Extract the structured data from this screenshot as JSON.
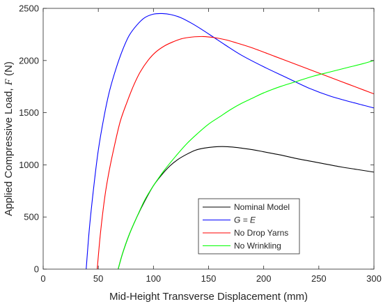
{
  "chart_data": {
    "type": "line",
    "title": "",
    "xlabel": "Mid-Height Transverse Displacement (mm)",
    "ylabel": "Applied Compressive Load, ",
    "ylabel_symbol": "F",
    "ylabel_unit": " (N)",
    "xlim": [
      0,
      300
    ],
    "ylim": [
      0,
      2500
    ],
    "xticks": [
      0,
      50,
      100,
      150,
      200,
      250,
      300
    ],
    "yticks": [
      0,
      500,
      1000,
      1500,
      2000,
      2500
    ],
    "grid": false,
    "legend_position": "bottom-center",
    "series": [
      {
        "name": "Nominal Model",
        "color": "#000000",
        "x": [
          68,
          72,
          78,
          85,
          92,
          100,
          108,
          115,
          122,
          130,
          138,
          146,
          155,
          163,
          172,
          180,
          190,
          200,
          215,
          230,
          250,
          270,
          285,
          300
        ],
        "y": [
          0,
          150,
          330,
          500,
          650,
          800,
          910,
          990,
          1050,
          1100,
          1140,
          1160,
          1172,
          1175,
          1170,
          1160,
          1145,
          1125,
          1095,
          1060,
          1020,
          980,
          955,
          930
        ]
      },
      {
        "name": "G = E",
        "name_math": true,
        "color": "#0000ff",
        "x": [
          39,
          42,
          46,
          50,
          55,
          60,
          66,
          72,
          78,
          85,
          92,
          100,
          108,
          116,
          125,
          135,
          145,
          155,
          165,
          180,
          200,
          220,
          240,
          260,
          280,
          300
        ],
        "y": [
          0,
          400,
          800,
          1140,
          1450,
          1700,
          1920,
          2100,
          2240,
          2340,
          2410,
          2445,
          2450,
          2440,
          2410,
          2355,
          2290,
          2220,
          2150,
          2050,
          1940,
          1840,
          1740,
          1660,
          1600,
          1545
        ]
      },
      {
        "name": "No Drop Yarns",
        "color": "#ff0000",
        "x": [
          49,
          52,
          56,
          60,
          65,
          70,
          76,
          82,
          88,
          95,
          102,
          110,
          118,
          126,
          135,
          145,
          155,
          165,
          175,
          190,
          210,
          230,
          250,
          270,
          290,
          300
        ],
        "y": [
          0,
          350,
          700,
          950,
          1200,
          1420,
          1600,
          1760,
          1890,
          2000,
          2080,
          2140,
          2180,
          2210,
          2225,
          2230,
          2220,
          2200,
          2170,
          2120,
          2040,
          1960,
          1880,
          1800,
          1720,
          1680
        ]
      },
      {
        "name": "No Wrinkling",
        "color": "#00ff00",
        "x": [
          68,
          72,
          78,
          85,
          92,
          100,
          110,
          120,
          130,
          140,
          150,
          160,
          170,
          180,
          190,
          200,
          215,
          230,
          245,
          260,
          275,
          290,
          300
        ],
        "y": [
          0,
          150,
          330,
          500,
          660,
          800,
          950,
          1080,
          1200,
          1300,
          1390,
          1460,
          1530,
          1590,
          1640,
          1690,
          1750,
          1800,
          1850,
          1890,
          1930,
          1970,
          2000
        ]
      }
    ]
  }
}
